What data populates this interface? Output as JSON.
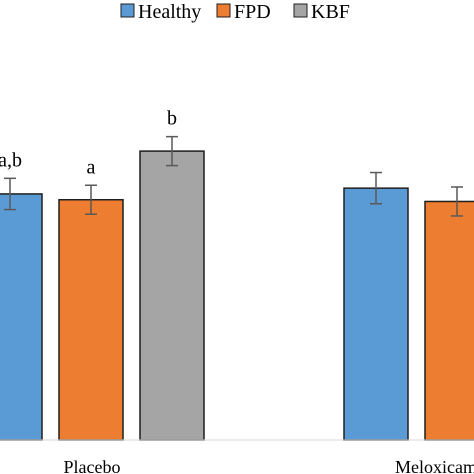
{
  "chart_data": {
    "type": "bar",
    "categories": [
      "Placebo",
      "Meloxicam"
    ],
    "series": [
      {
        "name": "Healthy",
        "color": "#5B9BD5",
        "values": [
          4.25,
          4.35
        ],
        "errors": [
          0.27,
          0.27
        ],
        "labels": [
          "a,b",
          ""
        ]
      },
      {
        "name": "FPD",
        "color": "#ED7D31",
        "values": [
          4.15,
          4.12
        ],
        "errors": [
          0.25,
          0.25
        ],
        "labels": [
          "a",
          ""
        ]
      },
      {
        "name": "KBF",
        "color": "#A5A5A5",
        "values": [
          4.99,
          null
        ],
        "errors": [
          0.25,
          null
        ],
        "labels": [
          "b",
          ""
        ]
      }
    ],
    "ylim": [
      0,
      7.6
    ],
    "grid": false,
    "legend": "top"
  }
}
